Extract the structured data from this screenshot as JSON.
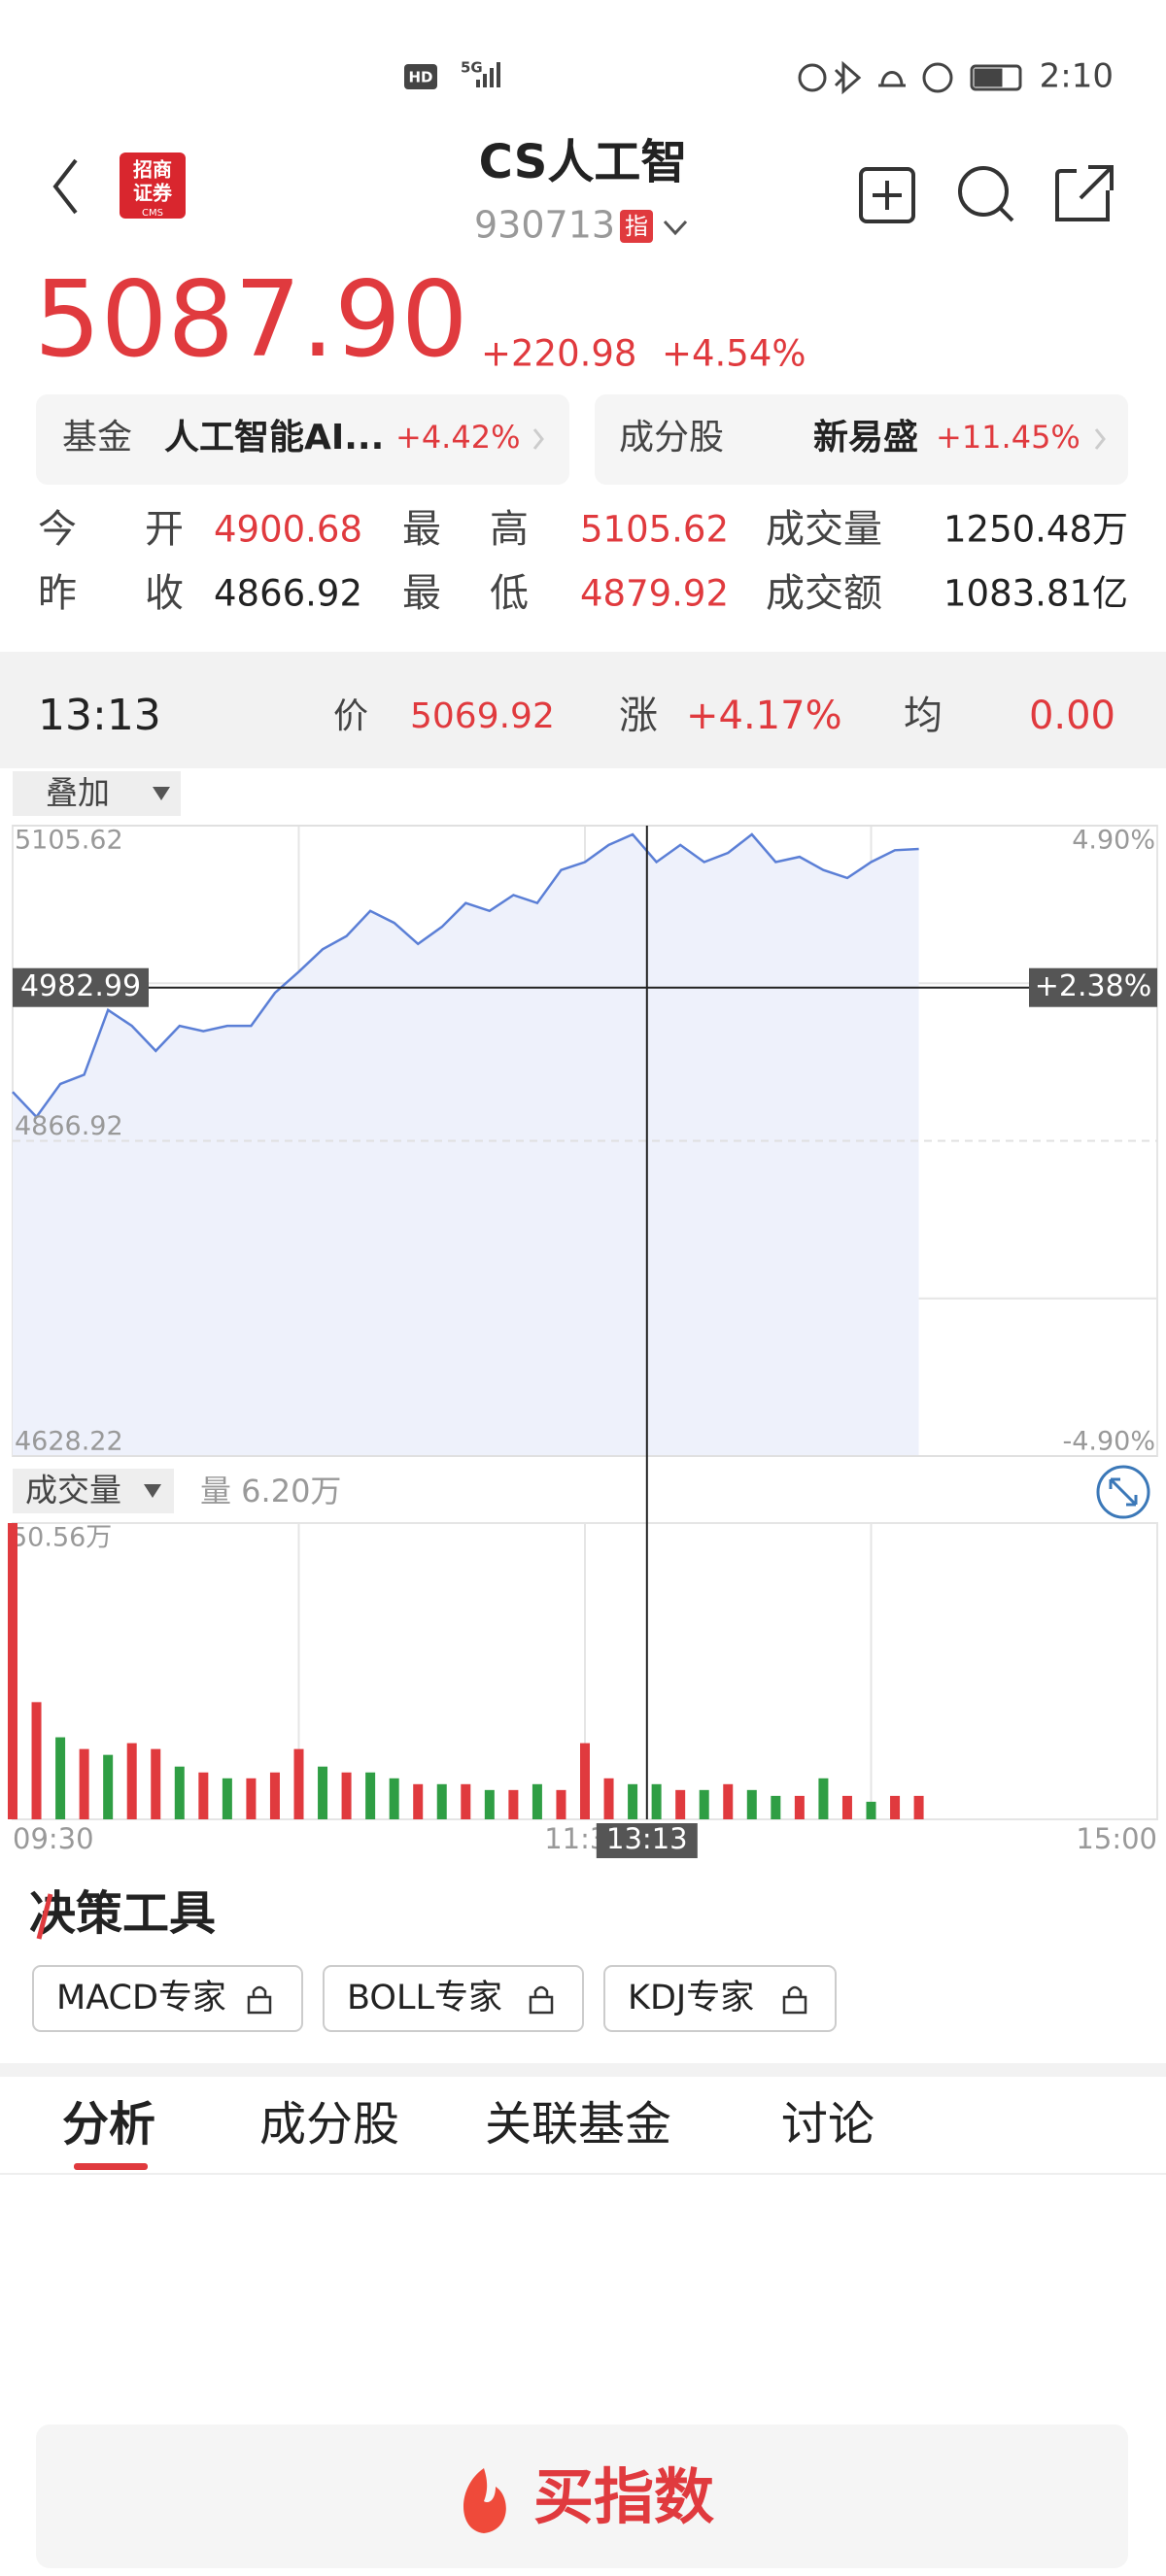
{
  "status_bar": {
    "network": "HD",
    "signal": "5G",
    "time": "2:10"
  },
  "header": {
    "logo": {
      "line1": "招商",
      "line2": "证券",
      "sub": "CMS"
    },
    "title": "CS人工智",
    "code": "930713",
    "badge": "指"
  },
  "quote": {
    "price": "5087.90",
    "change": "+220.98",
    "change_pct": "+4.54%"
  },
  "related": [
    {
      "label": "基金",
      "name": "人工智能AI...",
      "pct": "+4.42%"
    },
    {
      "label": "成分股",
      "name": "新易盛",
      "pct": "+11.45%"
    }
  ],
  "stats": {
    "rows": [
      [
        {
          "label": "今开",
          "value": "4900.68"
        },
        {
          "label": "最高",
          "value": "5105.62"
        },
        {
          "label": "成交量",
          "value": "1250.48万"
        }
      ],
      [
        {
          "label": "昨收",
          "value": "4866.92"
        },
        {
          "label": "最低",
          "value": "4879.92"
        },
        {
          "label": "成交额",
          "value": "1083.81亿"
        }
      ]
    ]
  },
  "crosshair_bar": {
    "time": "13:13",
    "price_label": "价",
    "price": "5069.92",
    "change_label": "涨",
    "change": "+4.17%",
    "avg_label": "均",
    "avg": "0.00"
  },
  "overlay_button": "叠加",
  "chart_data": [
    {
      "type": "line",
      "color": "#5b7fd6",
      "area_color": "#eef1fb",
      "x": [
        "09:30",
        "09:35",
        "09:40",
        "09:45",
        "09:50",
        "09:55",
        "10:00",
        "10:05",
        "10:10",
        "10:15",
        "10:20",
        "10:25",
        "10:30",
        "10:35",
        "10:40",
        "10:45",
        "10:50",
        "10:55",
        "11:00",
        "11:05",
        "11:10",
        "11:15",
        "11:20",
        "11:25",
        "11:30",
        "13:05",
        "13:10",
        "13:15",
        "13:20",
        "13:25",
        "13:30",
        "13:35",
        "13:40",
        "13:45",
        "13:50",
        "13:55",
        "14:00",
        "14:05",
        "14:10"
      ],
      "values": [
        4904,
        4885,
        4910,
        4917,
        4966,
        4954,
        4935,
        4954,
        4950,
        4954,
        4954,
        4979,
        4995,
        5012,
        5022,
        5041,
        5032,
        5016,
        5029,
        5047,
        5041,
        5053,
        5047,
        5072,
        5078,
        5091,
        5099,
        5078,
        5091,
        5078,
        5085,
        5099,
        5078,
        5082,
        5072,
        5066,
        5078,
        5087,
        5088
      ],
      "xlim": [
        "09:30",
        "15:00"
      ],
      "ylim": [
        4628.22,
        5105.62
      ],
      "yticks": [
        4628.22,
        4866.92,
        5105.62
      ],
      "y2lim": [
        -4.9,
        4.9
      ],
      "y2ticks": [
        {
          "value": 4.9,
          "label": "4.90%"
        },
        {
          "value": -4.9,
          "label": "-4.90%"
        }
      ],
      "grid": true,
      "crosshair": {
        "value": 4982.99,
        "right_label": "+2.38%"
      }
    },
    {
      "type": "bar",
      "legend_button": "成交量",
      "current_label": "量 6.20万",
      "x": [
        "09:30",
        "09:35",
        "09:40",
        "09:45",
        "09:50",
        "09:55",
        "10:00",
        "10:05",
        "10:10",
        "10:15",
        "10:20",
        "10:25",
        "10:30",
        "10:35",
        "10:40",
        "10:45",
        "10:50",
        "10:55",
        "11:00",
        "11:05",
        "11:10",
        "11:15",
        "11:20",
        "11:25",
        "11:30",
        "13:05",
        "13:10",
        "13:15",
        "13:20",
        "13:25",
        "13:30",
        "13:35",
        "13:40",
        "13:45",
        "13:50",
        "13:55",
        "14:00",
        "14:05",
        "14:10"
      ],
      "values": [
        50.56,
        20,
        14,
        12,
        11,
        13,
        12,
        9,
        8,
        7,
        7,
        8,
        12,
        9,
        8,
        8,
        7,
        6,
        6,
        6,
        5,
        5,
        6,
        5,
        13,
        7,
        6,
        6,
        5,
        5,
        6,
        5,
        4,
        4,
        7,
        4,
        3,
        4,
        4
      ],
      "colors": [
        "#e03a3e",
        "#e03a3e",
        "#2f9e44",
        "#e03a3e",
        "#2f9e44",
        "#e03a3e",
        "#e03a3e",
        "#2f9e44",
        "#e03a3e",
        "#2f9e44",
        "#e03a3e",
        "#e03a3e",
        "#e03a3e",
        "#2f9e44",
        "#e03a3e",
        "#2f9e44",
        "#2f9e44",
        "#e03a3e",
        "#2f9e44",
        "#e03a3e",
        "#2f9e44",
        "#e03a3e",
        "#2f9e44",
        "#e03a3e",
        "#e03a3e",
        "#e03a3e",
        "#2f9e44",
        "#2f9e44",
        "#e03a3e",
        "#2f9e44",
        "#e03a3e",
        "#2f9e44",
        "#2f9e44",
        "#e03a3e",
        "#2f9e44",
        "#e03a3e",
        "#2f9e44",
        "#e03a3e",
        "#e03a3e"
      ],
      "xlim": [
        "09:30",
        "15:00"
      ],
      "xticks": [
        "09:30",
        "11:30",
        "15:00"
      ],
      "ylim": [
        0,
        50.56
      ],
      "yticks": [
        {
          "value": 50.56,
          "label": "50.56万"
        }
      ],
      "crosshair": {
        "x": "13:13"
      }
    }
  ],
  "tools": {
    "title": "决策工具",
    "buttons": [
      "MACD专家",
      "BOLL专家",
      "KDJ专家"
    ]
  },
  "tabs": [
    "分析",
    "成分股",
    "关联基金",
    "讨论"
  ],
  "buy_button": "买指数"
}
